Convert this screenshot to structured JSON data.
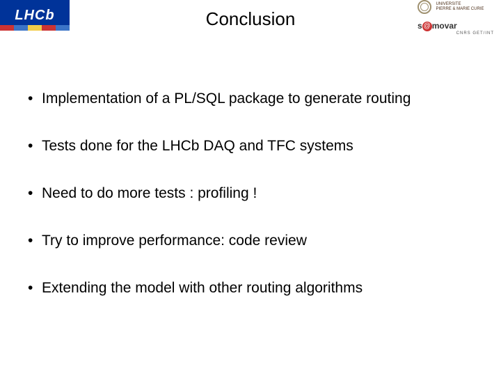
{
  "header": {
    "title": "Conclusion",
    "logo_left": {
      "text": "LHCb"
    },
    "logo_right_top": {
      "line1": "UNIVERSITE",
      "line2": "PIERRE & MARIE CURIE"
    },
    "logo_right_bottom": {
      "prefix": "s",
      "suffix": "movar",
      "sub": "CNRS   GET/INT"
    }
  },
  "bullets": [
    "Implementation of a PL/SQL package to generate routing",
    "Tests done for the LHCb DAQ and TFC systems",
    "Need to do more tests : profiling !",
    "Try to improve performance: code review",
    "Extending the model with other routing algorithms"
  ],
  "bullet_char": "•",
  "colors": {
    "background": "#ffffff",
    "text": "#000000",
    "logo_left_bg": "#003399",
    "logo_left_text": "#ffffff"
  }
}
